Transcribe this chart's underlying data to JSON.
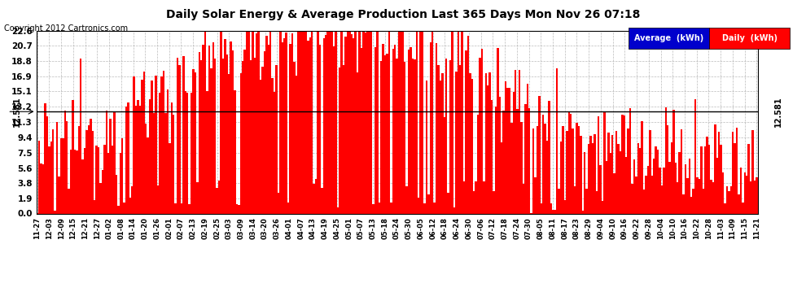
{
  "title": "Daily Solar Energy & Average Production Last 365 Days Mon Nov 26 07:18",
  "copyright": "Copyright 2012 Cartronics.com",
  "average_value": 12.581,
  "average_label": "12.581",
  "yticks": [
    0.0,
    1.9,
    3.8,
    5.6,
    7.5,
    9.4,
    11.3,
    13.2,
    15.1,
    16.9,
    18.8,
    20.7,
    22.6
  ],
  "ymax": 22.6,
  "bar_color": "#ff0000",
  "avg_line_color": "#000000",
  "background_color": "#ffffff",
  "plot_bg_color": "#ffffff",
  "grid_color": "#aaaaaa",
  "legend_avg_bg": "#0000cc",
  "legend_daily_bg": "#ff0000",
  "xtick_labels": [
    "11-27",
    "12-03",
    "12-09",
    "12-15",
    "12-21",
    "12-27",
    "01-02",
    "01-08",
    "01-14",
    "01-20",
    "01-26",
    "02-01",
    "02-07",
    "02-13",
    "02-19",
    "02-25",
    "03-03",
    "03-09",
    "03-14",
    "03-20",
    "03-26",
    "04-01",
    "04-07",
    "04-13",
    "04-19",
    "04-25",
    "05-01",
    "05-07",
    "05-13",
    "05-18",
    "05-24",
    "05-30",
    "06-05",
    "06-12",
    "06-18",
    "06-24",
    "06-30",
    "07-06",
    "07-12",
    "07-18",
    "07-24",
    "07-30",
    "08-05",
    "08-11",
    "08-17",
    "08-23",
    "08-29",
    "09-04",
    "09-10",
    "09-16",
    "09-22",
    "09-28",
    "10-04",
    "10-10",
    "10-16",
    "10-22",
    "10-28",
    "11-03",
    "11-09",
    "11-15",
    "11-21"
  ],
  "num_days": 365
}
